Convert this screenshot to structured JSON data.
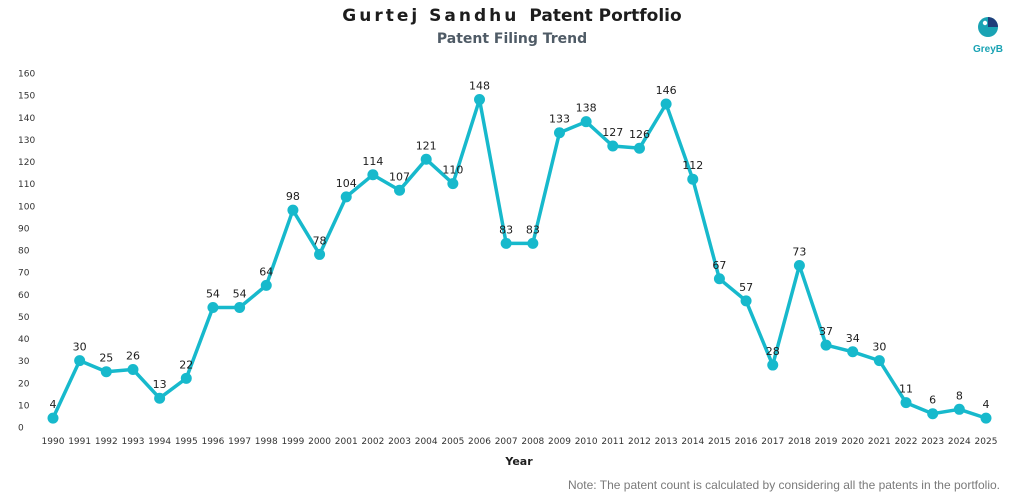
{
  "header": {
    "title_name": "Gurtej Sandhu",
    "title_rest": "Patent Portfolio",
    "subtitle": "Patent Filing Trend",
    "logo_text": "GreyB"
  },
  "note": "Note: The patent count is calculated by considering all the patents in the portfolio.",
  "colors": {
    "line": "#17b9cc",
    "text": "#1d1d1d",
    "axis_text": "#333333"
  },
  "chart_data": {
    "type": "line",
    "title": "Gurtej Sandhu Patent Portfolio",
    "subtitle": "Patent Filing Trend",
    "xlabel": "Year",
    "ylabel": "",
    "ylim": [
      0,
      160
    ],
    "yticks": [
      0,
      10,
      20,
      30,
      40,
      50,
      60,
      70,
      80,
      90,
      100,
      110,
      120,
      130,
      140,
      150,
      160
    ],
    "grid": false,
    "categories": [
      "1990",
      "1991",
      "1992",
      "1993",
      "1994",
      "1995",
      "1996",
      "1997",
      "1998",
      "1999",
      "2000",
      "2001",
      "2002",
      "2003",
      "2004",
      "2005",
      "2006",
      "2007",
      "2008",
      "2009",
      "2010",
      "2011",
      "2012",
      "2013",
      "2014",
      "2015",
      "2016",
      "2017",
      "2018",
      "2019",
      "2020",
      "2021",
      "2022",
      "2023",
      "2024",
      "2025"
    ],
    "series": [
      {
        "values": [
          4,
          30,
          25,
          26,
          13,
          22,
          54,
          54,
          64,
          98,
          78,
          104,
          114,
          107,
          121,
          110,
          148,
          83,
          83,
          133,
          138,
          127,
          126,
          146,
          112,
          67,
          57,
          28,
          73,
          37,
          34,
          30,
          11,
          6,
          8,
          4
        ]
      }
    ]
  }
}
